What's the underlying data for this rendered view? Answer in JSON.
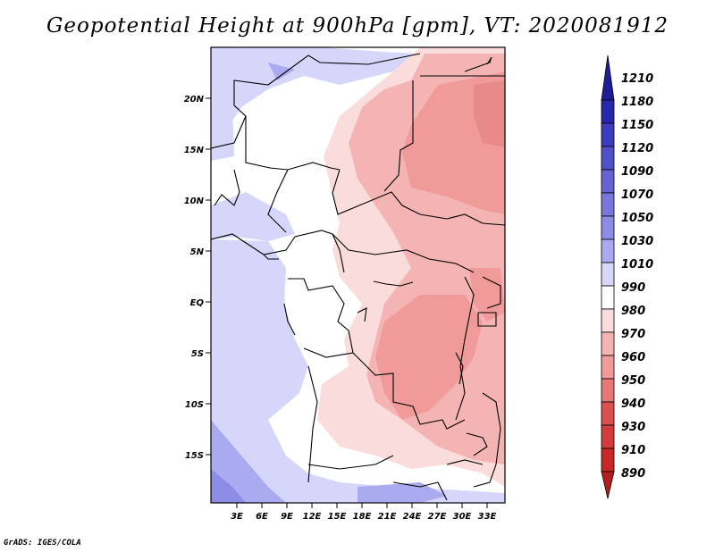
{
  "title": "Geopotential Height at 900hPa [gpm], VT: 2020081912",
  "footer": "GrADS: IGES/COLA",
  "map": {
    "lat_ticks": [
      "20N",
      "15N",
      "10N",
      "5N",
      "EQ",
      "5S",
      "10S",
      "15S"
    ],
    "lon_ticks": [
      "3E",
      "6E",
      "9E",
      "12E",
      "15E",
      "18E",
      "21E",
      "24E",
      "27E",
      "30E",
      "33E"
    ]
  },
  "legend": {
    "levels": [
      "1210",
      "1180",
      "1150",
      "1120",
      "1090",
      "1070",
      "1050",
      "1030",
      "1010",
      "990",
      "980",
      "970",
      "960",
      "950",
      "940",
      "930",
      "910",
      "890"
    ],
    "colors": [
      "#1e1e96",
      "#2828aa",
      "#3c3cbe",
      "#5050c8",
      "#6464d2",
      "#7878dc",
      "#8c8ce6",
      "#aaaaf0",
      "#d6d6fa",
      "#ffffff",
      "#fadcdc",
      "#f5b4b4",
      "#f09a9a",
      "#e67878",
      "#dc5050",
      "#d23c3c",
      "#c82828",
      "#b41e1e"
    ]
  }
}
